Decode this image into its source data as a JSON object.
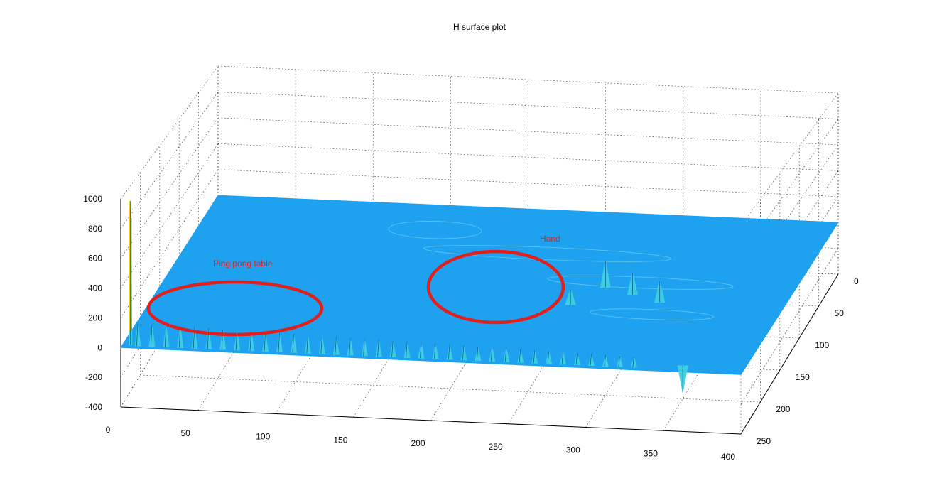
{
  "chart_data": {
    "type": "surface",
    "title": "H surface plot",
    "x_ticks": [
      "0",
      "50",
      "100",
      "150",
      "200",
      "250",
      "300",
      "350",
      "400"
    ],
    "y_ticks": [
      "0",
      "50",
      "100",
      "150",
      "200",
      "250"
    ],
    "z_ticks": [
      "-400",
      "-200",
      "0",
      "200",
      "400",
      "600",
      "800",
      "1000"
    ],
    "xlim": [
      0,
      400
    ],
    "ylim": [
      0,
      250
    ],
    "zlim": [
      -400,
      1000
    ],
    "grid": true,
    "surface_level": 0,
    "annotations": [
      {
        "text": "Ping pong table",
        "x": 80,
        "y": 210
      },
      {
        "text": "Hand",
        "x": 240,
        "y": 90
      }
    ],
    "peaks": [
      {
        "x": 5,
        "y": 245,
        "z": 970
      },
      {
        "x": 280,
        "y": 120,
        "z": 190
      },
      {
        "x": 300,
        "y": 130,
        "z": 160
      },
      {
        "x": 320,
        "y": 140,
        "z": 150
      },
      {
        "x": 265,
        "y": 150,
        "z": 110
      },
      {
        "x": 360,
        "y": 240,
        "z": -180
      }
    ],
    "edge_ripple": {
      "y": 250,
      "x_start": 10,
      "x_end": 330,
      "count": 36,
      "z_start": 150,
      "z_end": 70
    }
  },
  "colors": {
    "surface": "#1ea2f0",
    "spike": "#3fd0e0",
    "annotation": "#e0201e"
  }
}
